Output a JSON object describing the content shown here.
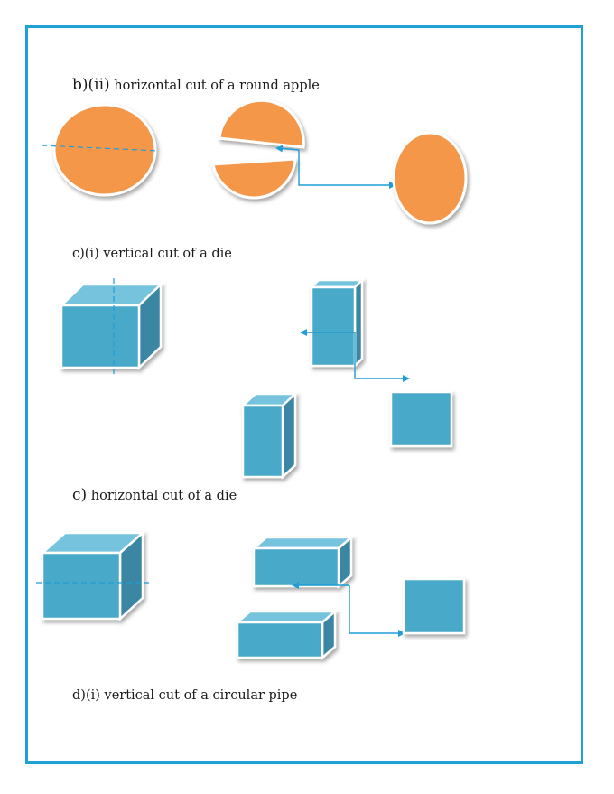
{
  "colors": {
    "border": "#1da1d6",
    "apple": "#f5974a",
    "cube_front": "#4aa9c8",
    "cube_top": "#74c3dc",
    "cube_side": "#3a87a3",
    "arrow": "#1f9dd6"
  },
  "captions": [
    {
      "prefix": "b)(ii)",
      "text": "horizontal cut of a round apple"
    },
    {
      "prefix": "c)(i)",
      "text": "vertical cut of a  die"
    },
    {
      "prefix": "c)",
      "text": "horizontal cut of a die"
    },
    {
      "prefix": "d)(i)",
      "text": "vertical cut of a circular pipe"
    }
  ]
}
